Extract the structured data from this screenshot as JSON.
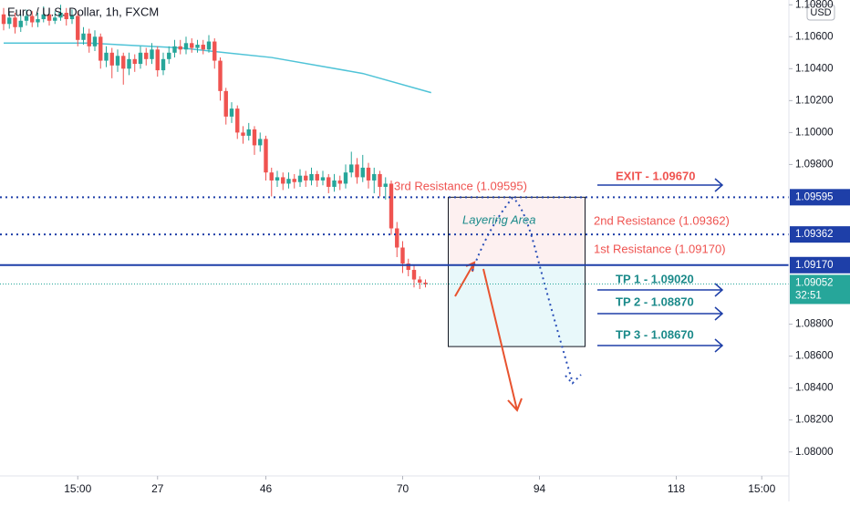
{
  "chart_data": {
    "type": "candlestick",
    "title": "Euro / U.S. Dollar, 1h, FXCM",
    "currency": "USD",
    "up_color": "#26a69a",
    "down_color": "#ef5350",
    "xlim": [
      -0.64,
      137.76
    ],
    "xticks": [
      {
        "value": 13,
        "label": "15:00"
      },
      27,
      46,
      70,
      94,
      118,
      {
        "value": 133,
        "label": "15:00"
      }
    ],
    "ylim": [
      1.0785,
      1.1083
    ],
    "yticks": [
      {
        "value": 1.108,
        "label": "1.10800"
      },
      {
        "value": 1.106,
        "label": "1.10600"
      },
      {
        "value": 1.104,
        "label": "1.10400"
      },
      {
        "value": 1.102,
        "label": "1.10200"
      },
      {
        "value": 1.1,
        "label": "1.10000"
      },
      {
        "value": 1.098,
        "label": "1.09800"
      },
      {
        "value": 1.088,
        "label": "1.08800"
      },
      {
        "value": 1.086,
        "label": "1.08600"
      },
      {
        "value": 1.084,
        "label": "1.08400"
      },
      {
        "value": 1.082,
        "label": "1.08200"
      },
      {
        "value": 1.08,
        "label": "1.08000"
      }
    ],
    "open": [
      1.1074,
      1.1068,
      1.1072,
      1.1066,
      1.107,
      1.1073,
      1.1069,
      1.1071,
      1.1074,
      1.107,
      1.1072,
      1.1075,
      1.1071,
      1.1073,
      1.1058,
      1.1062,
      1.1054,
      1.106,
      1.1045,
      1.105,
      1.1042,
      1.1048,
      1.104,
      1.1046,
      1.1043,
      1.105,
      1.1046,
      1.1052,
      1.1039,
      1.1046,
      1.105,
      1.1054,
      1.1052,
      1.1056,
      1.1053,
      1.1055,
      1.1052,
      1.1057,
      1.1045,
      1.1026,
      1.101,
      1.1015,
      1.1,
      1.0998,
      1.1002,
      1.0992,
      1.0996,
      1.0975,
      1.097,
      1.0972,
      1.0968,
      1.0971,
      1.0969,
      1.0973,
      1.097,
      1.0974,
      1.097,
      1.0972,
      1.0966,
      1.097,
      1.0968,
      1.0975,
      1.098,
      1.0972,
      1.0978,
      1.097,
      1.0974,
      1.0966,
      1.0968,
      1.094,
      1.0928,
      1.0918,
      1.0914,
      1.0908,
      1.0906
    ],
    "high": [
      1.1078,
      1.1076,
      1.1075,
      1.1074,
      1.1077,
      1.1076,
      1.1075,
      1.1079,
      1.1077,
      1.1076,
      1.108,
      1.1078,
      1.1077,
      1.1076,
      1.1066,
      1.1065,
      1.1064,
      1.1062,
      1.1054,
      1.1053,
      1.1052,
      1.105,
      1.105,
      1.1049,
      1.1054,
      1.1053,
      1.1056,
      1.1054,
      1.105,
      1.1054,
      1.1058,
      1.1058,
      1.106,
      1.1059,
      1.1058,
      1.1058,
      1.1061,
      1.1059,
      1.1047,
      1.1028,
      1.1019,
      1.1017,
      1.1004,
      1.1006,
      1.1004,
      1.1,
      1.0998,
      1.0978,
      1.0976,
      1.0975,
      1.0975,
      1.0974,
      1.0977,
      1.0976,
      1.0978,
      1.0976,
      1.0976,
      1.0974,
      1.0974,
      1.0973,
      1.098,
      1.0988,
      1.0984,
      1.0986,
      1.0981,
      1.0978,
      1.0976,
      1.0972,
      1.097,
      1.0944,
      1.0932,
      1.0921,
      1.0917,
      1.091,
      1.0908
    ],
    "low": [
      1.1064,
      1.1065,
      1.1062,
      1.1063,
      1.1067,
      1.1066,
      1.1066,
      1.1069,
      1.1067,
      1.1068,
      1.107,
      1.1067,
      1.1068,
      1.1054,
      1.1055,
      1.105,
      1.1051,
      1.104,
      1.1041,
      1.1034,
      1.1038,
      1.103,
      1.1036,
      1.1038,
      1.104,
      1.1042,
      1.1043,
      1.1035,
      1.1036,
      1.1043,
      1.1047,
      1.1049,
      1.1049,
      1.105,
      1.105,
      1.1049,
      1.105,
      1.104,
      1.102,
      1.1005,
      1.1006,
      1.0996,
      1.0993,
      1.0995,
      1.0986,
      1.0988,
      1.097,
      1.096,
      1.0966,
      1.0964,
      1.0965,
      1.0965,
      1.0966,
      1.0966,
      1.0967,
      1.0966,
      1.0967,
      1.0962,
      1.0963,
      1.0964,
      1.0965,
      1.0972,
      1.0968,
      1.0969,
      1.0965,
      1.0962,
      1.096,
      1.0958,
      1.0936,
      1.0922,
      1.0912,
      1.091,
      1.0903,
      1.0902,
      1.0903
    ],
    "close": [
      1.1068,
      1.1072,
      1.1066,
      1.107,
      1.1073,
      1.1069,
      1.1071,
      1.1074,
      1.107,
      1.1072,
      1.1075,
      1.1071,
      1.1073,
      1.1058,
      1.1062,
      1.1054,
      1.106,
      1.1045,
      1.105,
      1.1042,
      1.1048,
      1.104,
      1.1046,
      1.1043,
      1.105,
      1.1046,
      1.1052,
      1.1039,
      1.1046,
      1.105,
      1.1054,
      1.1052,
      1.1056,
      1.1053,
      1.1055,
      1.1052,
      1.1057,
      1.1045,
      1.1026,
      1.101,
      1.1015,
      1.1,
      1.0998,
      1.1002,
      1.0992,
      1.0996,
      1.0975,
      1.097,
      1.0972,
      1.0968,
      1.0971,
      1.0969,
      1.0973,
      1.097,
      1.0974,
      1.097,
      1.0972,
      1.0966,
      1.097,
      1.0968,
      1.0975,
      1.098,
      1.0972,
      1.0978,
      1.097,
      1.0974,
      1.0966,
      1.0968,
      1.094,
      1.0928,
      1.0918,
      1.0914,
      1.0908,
      1.0906,
      1.0905
    ],
    "moving_average": {
      "color": "#4fc3d7",
      "x": [
        0,
        15,
        31,
        47,
        63,
        75
      ],
      "values": [
        1.1056,
        1.1056,
        1.1053,
        1.1047,
        1.1037,
        1.1025
      ]
    },
    "levels": [
      {
        "value": 1.09595,
        "label": "1.09595",
        "style": "dotted"
      },
      {
        "value": 1.09362,
        "label": "1.09362",
        "style": "dotted"
      },
      {
        "value": 1.0917,
        "label": "1.09170",
        "style": "solid"
      }
    ],
    "level_color": "#1e3fa8",
    "last_price": {
      "value": 1.09052,
      "label": "1.09052",
      "countdown": "32:51"
    },
    "zone": {
      "x": [
        78,
        102
      ],
      "y": [
        1.0866,
        1.09595
      ],
      "split": 1.0917
    },
    "annotations": [
      "3rd Resistance (1.09595)",
      "Layering Area",
      "2nd Resistance (1.09362)",
      "1st Resistance (1.09170)",
      "EXIT - 1.09670",
      "TP 1 - 1.09020",
      "TP 2 - 1.08870",
      "TP 3 - 1.08670"
    ]
  }
}
